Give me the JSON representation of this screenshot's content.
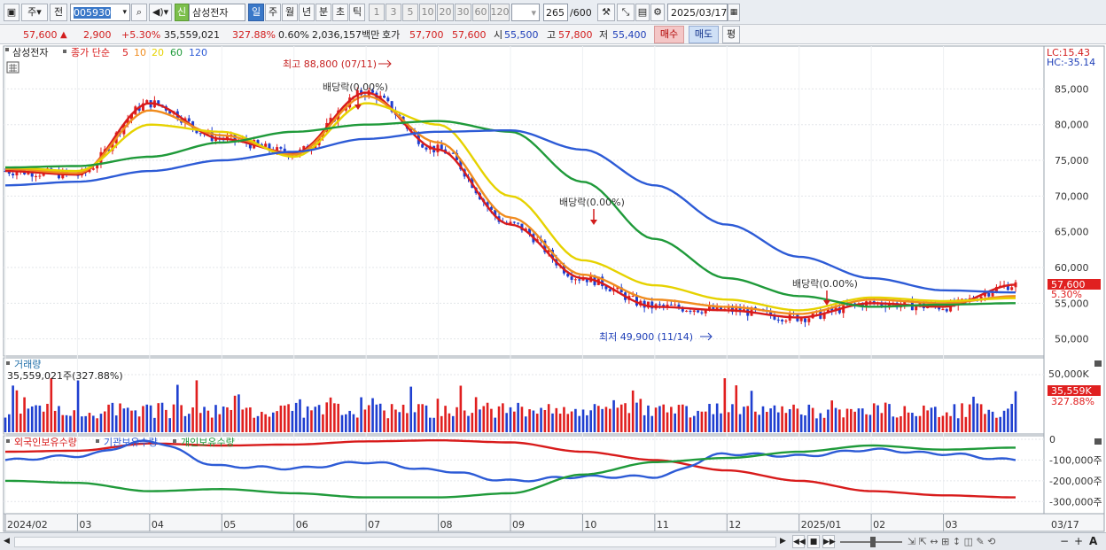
{
  "toolbar": {
    "market": "주",
    "prev_label": "전",
    "code": "005930",
    "new_badge": "신",
    "stock_name": "삼성전자",
    "periods": [
      "일",
      "주",
      "월",
      "년",
      "분",
      "초",
      "틱"
    ],
    "minute_units": [
      "1",
      "3",
      "5",
      "10",
      "20",
      "30",
      "60",
      "120"
    ],
    "count": "265",
    "count_total": "/600",
    "date": "2025/03/17"
  },
  "quote": {
    "price": "57,600",
    "up_arrow": "▲",
    "change": "2,900",
    "change_pct": "+5.30%",
    "volume": "35,559,021",
    "volume_ratio": "327.88%",
    "turnover": "0.60%",
    "amount": "2,036,157백만",
    "bid_label": "호가",
    "bid1": "57,700",
    "bid2": "57,600",
    "open_label": "시",
    "open": "55,500",
    "high_label": "고",
    "high": "57,800",
    "low_label": "저",
    "low": "55,400",
    "buy_label": "매수",
    "sell_label": "매도",
    "eval_label": "평"
  },
  "legend": {
    "name": "삼성전자",
    "price_label": "종가 단순",
    "ma": [
      {
        "label": "5",
        "color": "#d81b1b"
      },
      {
        "label": "10",
        "color": "#f08c1e"
      },
      {
        "label": "20",
        "color": "#e6d200"
      },
      {
        "label": "60",
        "color": "#1f9a3a"
      },
      {
        "label": "120",
        "color": "#2d5bd6"
      }
    ]
  },
  "annotations": {
    "high": "최고 88,800 (07/11)",
    "low": "최저 49,900 (11/14)",
    "dividend": "배당락(0.00%)"
  },
  "price_axis": {
    "labels": [
      "85,000",
      "80,000",
      "75,000",
      "70,000",
      "65,000",
      "60,000",
      "55,000",
      "50,000"
    ],
    "lc": "LC:15.43",
    "hc": "HC:-35.14",
    "current": "57,600",
    "current_pct": "5.30%"
  },
  "volume_panel": {
    "title": "거래량",
    "value": "35,559,021주(327.88%)",
    "axis": "50,000K",
    "current": "35,559K",
    "current_pct": "327.88%"
  },
  "holdings_panel": {
    "series": [
      {
        "name": "외국인보유수량",
        "color": "#d81b1b"
      },
      {
        "name": "기관보유수량",
        "color": "#2d5bd6"
      },
      {
        "name": "개인보유수량",
        "color": "#1f9a3a"
      }
    ],
    "axis": [
      "0",
      "-100,000주",
      "-200,000주",
      "-300,000주"
    ]
  },
  "x_axis": [
    "2024/02",
    "03",
    "04",
    "05",
    "06",
    "07",
    "08",
    "09",
    "10",
    "11",
    "12",
    "2025/01",
    "02",
    "03"
  ],
  "x_axis_end": "03/17",
  "chart_data": {
    "type": "line",
    "x": [
      "2024/02",
      "2024/03",
      "2024/04",
      "2024/05",
      "2024/06",
      "2024/07",
      "2024/08",
      "2024/09",
      "2024/10",
      "2024/11",
      "2024/12",
      "2025/01",
      "2025/02",
      "2025/03",
      "2025/03/17"
    ],
    "series": [
      {
        "name": "5",
        "values": [
          73500,
          73000,
          83000,
          78000,
          76000,
          84500,
          76500,
          66000,
          58500,
          54500,
          54000,
          53000,
          55000,
          54500,
          57600
        ]
      },
      {
        "name": "10",
        "values": [
          73800,
          73200,
          82000,
          78500,
          75800,
          84000,
          77500,
          67000,
          59000,
          55500,
          54500,
          53500,
          55500,
          55000,
          56000
        ]
      },
      {
        "name": "20",
        "values": [
          74000,
          73500,
          80000,
          79000,
          75500,
          83000,
          80000,
          70000,
          61000,
          57500,
          55500,
          54000,
          55800,
          55300,
          55700
        ]
      },
      {
        "name": "60",
        "values": [
          74000,
          74200,
          75500,
          77500,
          79000,
          80000,
          80500,
          79000,
          72000,
          64000,
          58500,
          56000,
          54500,
          54800,
          55000
        ]
      },
      {
        "name": "120",
        "values": [
          71500,
          72000,
          73500,
          75000,
          76200,
          78000,
          79000,
          79200,
          76500,
          71500,
          66000,
          61500,
          58500,
          56800,
          56500
        ]
      }
    ],
    "price_range": [
      49900,
      88800
    ],
    "ylim": [
      47600,
      91000
    ],
    "volume_ylim": [
      0,
      60000
    ],
    "holdings_ylim": [
      -350000,
      0
    ]
  }
}
